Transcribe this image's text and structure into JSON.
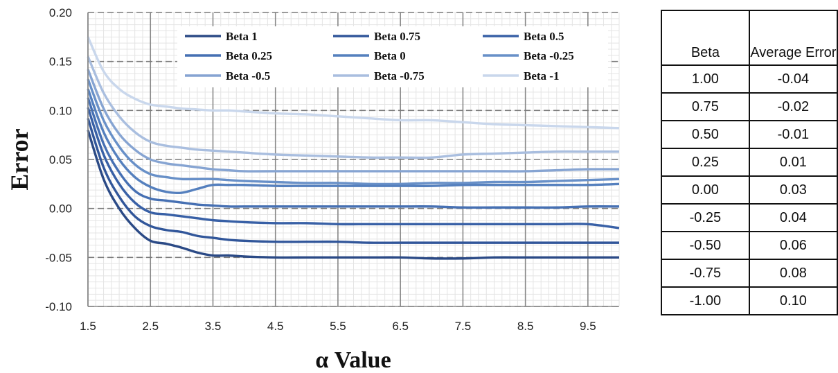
{
  "chart_data": [
    {
      "type": "line",
      "xlabel": "α Value",
      "ylabel": "Error",
      "xlim": [
        1.5,
        10.0
      ],
      "ylim": [
        -0.1,
        0.2
      ],
      "x_ticks": [
        "1.5",
        "2.5",
        "3.5",
        "4.5",
        "5.5",
        "6.5",
        "7.5",
        "8.5",
        "9.5"
      ],
      "y_ticks": [
        "0.20",
        "0.15",
        "0.10",
        "0.05",
        "0.00",
        "-0.05",
        "-0.10"
      ],
      "grid": true,
      "legend": "top",
      "x": [
        1.5,
        1.75,
        2.0,
        2.25,
        2.5,
        2.75,
        3.0,
        3.25,
        3.5,
        3.75,
        4.0,
        4.5,
        5.0,
        5.5,
        6.0,
        6.5,
        7.0,
        7.5,
        8.0,
        8.5,
        9.0,
        9.5,
        10.0
      ],
      "series": [
        {
          "name": "Beta 1",
          "color": "#2b4a86",
          "values": [
            0.08,
            0.03,
            0.0,
            -0.02,
            -0.033,
            -0.036,
            -0.04,
            -0.045,
            -0.048,
            -0.048,
            -0.049,
            -0.05,
            -0.05,
            -0.05,
            -0.05,
            -0.05,
            -0.051,
            -0.051,
            -0.05,
            -0.05,
            -0.05,
            -0.05,
            -0.05
          ]
        },
        {
          "name": "Beta 0.75",
          "color": "#31569a",
          "values": [
            0.092,
            0.042,
            0.012,
            -0.008,
            -0.018,
            -0.022,
            -0.024,
            -0.028,
            -0.03,
            -0.032,
            -0.033,
            -0.034,
            -0.034,
            -0.034,
            -0.035,
            -0.035,
            -0.035,
            -0.035,
            -0.035,
            -0.035,
            -0.035,
            -0.035,
            -0.035
          ]
        },
        {
          "name": "Beta 0.5",
          "color": "#3860a6",
          "values": [
            0.103,
            0.055,
            0.025,
            0.006,
            -0.004,
            -0.006,
            -0.008,
            -0.01,
            -0.012,
            -0.013,
            -0.014,
            -0.015,
            -0.015,
            -0.016,
            -0.016,
            -0.016,
            -0.016,
            -0.016,
            -0.016,
            -0.016,
            -0.016,
            -0.016,
            -0.02
          ]
        },
        {
          "name": "Beta 0.25",
          "color": "#4670b3",
          "values": [
            0.113,
            0.066,
            0.037,
            0.018,
            0.01,
            0.008,
            0.006,
            0.004,
            0.003,
            0.002,
            0.002,
            0.002,
            0.002,
            0.002,
            0.002,
            0.002,
            0.002,
            0.001,
            0.001,
            0.001,
            0.001,
            0.002,
            0.002
          ]
        },
        {
          "name": "Beta 0",
          "color": "#5580be",
          "values": [
            0.122,
            0.078,
            0.05,
            0.032,
            0.022,
            0.017,
            0.016,
            0.02,
            0.024,
            0.024,
            0.024,
            0.023,
            0.023,
            0.023,
            0.023,
            0.023,
            0.023,
            0.024,
            0.024,
            0.024,
            0.024,
            0.024,
            0.025
          ]
        },
        {
          "name": "Beta -0.25",
          "color": "#6890c8",
          "values": [
            0.132,
            0.09,
            0.063,
            0.045,
            0.035,
            0.032,
            0.03,
            0.03,
            0.03,
            0.029,
            0.028,
            0.027,
            0.026,
            0.026,
            0.025,
            0.025,
            0.026,
            0.026,
            0.027,
            0.027,
            0.028,
            0.029,
            0.03
          ]
        },
        {
          "name": "Beta -0.5",
          "color": "#86a4d2",
          "values": [
            0.142,
            0.102,
            0.076,
            0.06,
            0.05,
            0.046,
            0.044,
            0.042,
            0.04,
            0.039,
            0.038,
            0.038,
            0.038,
            0.038,
            0.038,
            0.038,
            0.038,
            0.038,
            0.038,
            0.038,
            0.039,
            0.04,
            0.04
          ]
        },
        {
          "name": "Beta -0.75",
          "color": "#a9bedf",
          "values": [
            0.155,
            0.118,
            0.094,
            0.078,
            0.068,
            0.064,
            0.062,
            0.06,
            0.059,
            0.058,
            0.057,
            0.055,
            0.054,
            0.053,
            0.052,
            0.052,
            0.052,
            0.055,
            0.056,
            0.057,
            0.058,
            0.058,
            0.058
          ]
        },
        {
          "name": "Beta -1",
          "color": "#c9d7ec",
          "values": [
            0.175,
            0.14,
            0.122,
            0.112,
            0.106,
            0.104,
            0.102,
            0.101,
            0.1,
            0.1,
            0.099,
            0.097,
            0.096,
            0.094,
            0.092,
            0.09,
            0.09,
            0.088,
            0.086,
            0.085,
            0.084,
            0.083,
            0.082
          ]
        }
      ]
    },
    {
      "type": "table",
      "columns": [
        "Beta",
        "Average Error"
      ],
      "rows": [
        [
          "1.00",
          "-0.04"
        ],
        [
          "0.75",
          "-0.02"
        ],
        [
          "0.50",
          "-0.01"
        ],
        [
          "0.25",
          "0.01"
        ],
        [
          "0.00",
          "0.03"
        ],
        [
          "-0.25",
          "0.04"
        ],
        [
          "-0.50",
          "0.06"
        ],
        [
          "-0.75",
          "0.08"
        ],
        [
          "-1.00",
          "0.10"
        ]
      ]
    }
  ]
}
